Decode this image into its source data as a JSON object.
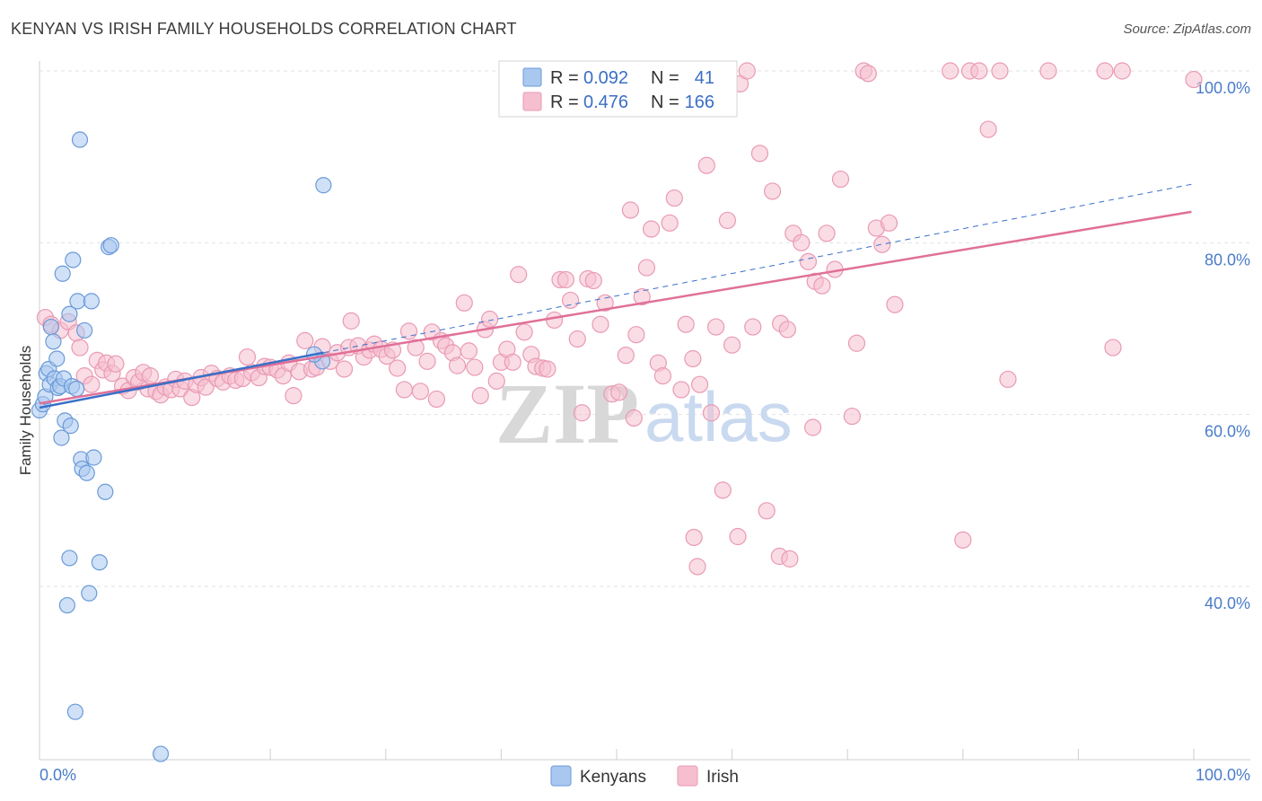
{
  "header": {
    "title": "KENYAN VS IRISH FAMILY HOUSEHOLDS CORRELATION CHART",
    "source": "Source: ZipAtlas.com"
  },
  "watermark": {
    "zip": "ZIP",
    "atlas": "atlas"
  },
  "legend": {
    "r_label": "R =",
    "n_label": "N =",
    "kenyans": {
      "r": "0.092",
      "n": "41"
    },
    "irish": {
      "r": "0.476",
      "n": "166"
    }
  },
  "bottom_legend": {
    "kenyans": "Kenyans",
    "irish": "Irish"
  },
  "colors": {
    "kenyans_fill": "#a9c8f0",
    "kenyans_stroke": "#6a9ad8",
    "kenyans_line": "#3a70c8",
    "irish_fill": "#f6bfd0",
    "irish_stroke": "#e99ab4",
    "irish_line": "#e07098",
    "tick_label": "#4a7cc8",
    "grid": "#e2e2e2"
  },
  "chart_data": {
    "type": "scatter",
    "title": "KENYAN VS IRISH FAMILY HOUSEHOLDS CORRELATION CHART",
    "xlabel": "",
    "ylabel": "Family Households",
    "xlim": [
      0,
      100
    ],
    "ylim": [
      20,
      102
    ],
    "x_tick_labels": [
      "0.0%",
      "100.0%"
    ],
    "y_ticks": [
      40,
      60,
      80,
      100
    ],
    "y_tick_labels": [
      "40.0%",
      "60.0%",
      "80.0%",
      "100.0%"
    ],
    "series": [
      {
        "name": "Kenyans",
        "r": 0.092,
        "n": 41,
        "trend": {
          "x": [
            0,
            24.6
          ],
          "y": [
            60.8,
            67.2
          ]
        },
        "trend_dashed": {
          "x": [
            24.6,
            99.8
          ],
          "y": [
            67.2,
            86.8
          ]
        },
        "points": [
          [
            0.0,
            60.5
          ],
          [
            0.3,
            61.2
          ],
          [
            0.5,
            62.1
          ],
          [
            0.6,
            64.8
          ],
          [
            0.8,
            65.3
          ],
          [
            0.9,
            63.5
          ],
          [
            1.0,
            70.2
          ],
          [
            1.2,
            68.5
          ],
          [
            1.3,
            64.2
          ],
          [
            1.5,
            66.5
          ],
          [
            1.6,
            63.1
          ],
          [
            1.8,
            63.3
          ],
          [
            1.9,
            57.3
          ],
          [
            2.0,
            76.4
          ],
          [
            2.1,
            64.2
          ],
          [
            2.2,
            59.3
          ],
          [
            2.4,
            37.8
          ],
          [
            2.6,
            43.3
          ],
          [
            2.6,
            71.7
          ],
          [
            2.7,
            58.7
          ],
          [
            2.8,
            63.3
          ],
          [
            2.9,
            78.0
          ],
          [
            3.1,
            25.4
          ],
          [
            3.2,
            63.0
          ],
          [
            3.3,
            73.2
          ],
          [
            3.5,
            92.0
          ],
          [
            3.6,
            54.8
          ],
          [
            3.7,
            53.7
          ],
          [
            3.9,
            69.8
          ],
          [
            4.1,
            53.2
          ],
          [
            4.3,
            39.2
          ],
          [
            4.5,
            73.2
          ],
          [
            4.7,
            55.0
          ],
          [
            5.2,
            42.8
          ],
          [
            5.7,
            51.0
          ],
          [
            6.0,
            79.5
          ],
          [
            6.2,
            79.7
          ],
          [
            10.5,
            20.5
          ],
          [
            24.6,
            86.7
          ],
          [
            24.5,
            66.2
          ],
          [
            23.8,
            67.0
          ]
        ]
      },
      {
        "name": "Irish",
        "r": 0.476,
        "n": 166,
        "trend": {
          "x": [
            0,
            99.8
          ],
          "y": [
            61.3,
            83.6
          ]
        },
        "points": [
          [
            0.5,
            71.3
          ],
          [
            1.0,
            70.5
          ],
          [
            1.8,
            69.8
          ],
          [
            2.5,
            70.8
          ],
          [
            3.2,
            69.5
          ],
          [
            3.5,
            67.8
          ],
          [
            3.9,
            64.5
          ],
          [
            4.5,
            63.5
          ],
          [
            5.0,
            66.3
          ],
          [
            5.5,
            65.2
          ],
          [
            5.8,
            66.0
          ],
          [
            6.3,
            64.8
          ],
          [
            6.6,
            65.9
          ],
          [
            7.2,
            63.3
          ],
          [
            7.7,
            62.8
          ],
          [
            8.2,
            64.3
          ],
          [
            8.6,
            63.8
          ],
          [
            9.0,
            64.9
          ],
          [
            9.4,
            63.0
          ],
          [
            9.6,
            64.5
          ],
          [
            10.1,
            62.7
          ],
          [
            10.5,
            62.3
          ],
          [
            10.9,
            63.2
          ],
          [
            11.4,
            62.9
          ],
          [
            11.8,
            64.1
          ],
          [
            12.2,
            63.0
          ],
          [
            12.6,
            63.9
          ],
          [
            13.2,
            62.0
          ],
          [
            13.6,
            63.5
          ],
          [
            14.0,
            64.3
          ],
          [
            14.4,
            63.2
          ],
          [
            14.9,
            64.8
          ],
          [
            15.4,
            64.2
          ],
          [
            15.9,
            63.8
          ],
          [
            16.5,
            64.5
          ],
          [
            17.0,
            64.0
          ],
          [
            17.6,
            64.2
          ],
          [
            18.0,
            66.7
          ],
          [
            18.4,
            64.9
          ],
          [
            19.0,
            64.3
          ],
          [
            19.5,
            65.6
          ],
          [
            20.0,
            65.5
          ],
          [
            20.6,
            65.2
          ],
          [
            21.1,
            64.5
          ],
          [
            21.6,
            66.0
          ],
          [
            22.0,
            62.2
          ],
          [
            22.5,
            65.0
          ],
          [
            23.0,
            68.6
          ],
          [
            23.6,
            65.3
          ],
          [
            24.0,
            65.5
          ],
          [
            24.5,
            67.9
          ],
          [
            25.2,
            66.2
          ],
          [
            25.8,
            67.2
          ],
          [
            26.4,
            65.3
          ],
          [
            26.8,
            67.8
          ],
          [
            27.0,
            70.9
          ],
          [
            27.6,
            68.0
          ],
          [
            28.1,
            66.7
          ],
          [
            28.6,
            67.5
          ],
          [
            29.0,
            68.2
          ],
          [
            29.6,
            67.6
          ],
          [
            30.1,
            66.8
          ],
          [
            30.6,
            67.5
          ],
          [
            31.0,
            65.4
          ],
          [
            31.6,
            62.9
          ],
          [
            32.0,
            69.7
          ],
          [
            32.6,
            67.8
          ],
          [
            33.0,
            62.7
          ],
          [
            33.6,
            66.2
          ],
          [
            34.0,
            69.6
          ],
          [
            34.4,
            61.8
          ],
          [
            34.8,
            68.6
          ],
          [
            35.2,
            68.0
          ],
          [
            35.8,
            67.2
          ],
          [
            36.2,
            65.7
          ],
          [
            36.8,
            73.0
          ],
          [
            37.2,
            67.4
          ],
          [
            37.7,
            65.5
          ],
          [
            38.2,
            62.2
          ],
          [
            38.6,
            69.9
          ],
          [
            39.0,
            71.1
          ],
          [
            39.6,
            63.9
          ],
          [
            40.0,
            66.1
          ],
          [
            40.5,
            67.6
          ],
          [
            41.0,
            66.1
          ],
          [
            41.5,
            76.3
          ],
          [
            42.0,
            69.6
          ],
          [
            42.6,
            67.0
          ],
          [
            43.0,
            65.6
          ],
          [
            43.6,
            65.4
          ],
          [
            44.0,
            65.3
          ],
          [
            44.6,
            71.0
          ],
          [
            45.1,
            75.7
          ],
          [
            45.6,
            75.7
          ],
          [
            46.0,
            73.3
          ],
          [
            46.6,
            68.8
          ],
          [
            47.0,
            60.2
          ],
          [
            47.5,
            75.8
          ],
          [
            48.0,
            75.6
          ],
          [
            48.6,
            70.5
          ],
          [
            49.0,
            73.0
          ],
          [
            49.6,
            62.4
          ],
          [
            50.2,
            62.6
          ],
          [
            50.8,
            66.9
          ],
          [
            51.2,
            83.8
          ],
          [
            51.7,
            69.3
          ],
          [
            52.2,
            73.7
          ],
          [
            52.6,
            77.1
          ],
          [
            53.0,
            81.6
          ],
          [
            53.6,
            66.0
          ],
          [
            54.0,
            64.5
          ],
          [
            54.6,
            82.3
          ],
          [
            55.0,
            85.2
          ],
          [
            55.6,
            62.9
          ],
          [
            56.0,
            70.5
          ],
          [
            56.6,
            66.5
          ],
          [
            57.2,
            63.5
          ],
          [
            57.8,
            89.0
          ],
          [
            58.2,
            60.2
          ],
          [
            58.6,
            70.2
          ],
          [
            59.2,
            51.2
          ],
          [
            59.6,
            82.6
          ],
          [
            60.0,
            68.1
          ],
          [
            60.7,
            98.5
          ],
          [
            61.3,
            100.0
          ],
          [
            61.8,
            70.2
          ],
          [
            62.4,
            90.4
          ],
          [
            63.0,
            48.8
          ],
          [
            63.5,
            86.0
          ],
          [
            64.2,
            70.6
          ],
          [
            64.8,
            69.9
          ],
          [
            65.3,
            81.1
          ],
          [
            66.0,
            80.0
          ],
          [
            66.6,
            77.8
          ],
          [
            67.2,
            75.5
          ],
          [
            67.8,
            75.0
          ],
          [
            68.2,
            81.1
          ],
          [
            68.9,
            76.9
          ],
          [
            69.4,
            87.4
          ],
          [
            70.4,
            59.8
          ],
          [
            70.8,
            68.3
          ],
          [
            71.4,
            100.0
          ],
          [
            71.8,
            99.7
          ],
          [
            72.5,
            81.7
          ],
          [
            73.0,
            79.8
          ],
          [
            73.6,
            82.3
          ],
          [
            74.1,
            72.8
          ],
          [
            78.9,
            100.0
          ],
          [
            80.6,
            100.0
          ],
          [
            81.4,
            100.0
          ],
          [
            82.2,
            93.2
          ],
          [
            83.9,
            64.1
          ],
          [
            83.2,
            100.0
          ],
          [
            87.4,
            100.0
          ],
          [
            92.3,
            100.0
          ],
          [
            93.0,
            67.8
          ],
          [
            93.8,
            100.0
          ],
          [
            100.0,
            99.0
          ],
          [
            60.5,
            45.8
          ],
          [
            64.1,
            43.5
          ],
          [
            65.0,
            43.2
          ],
          [
            67.0,
            58.5
          ],
          [
            80.0,
            45.4
          ],
          [
            56.7,
            45.7
          ],
          [
            57.0,
            42.3
          ],
          [
            51.5,
            59.6
          ]
        ]
      }
    ]
  }
}
